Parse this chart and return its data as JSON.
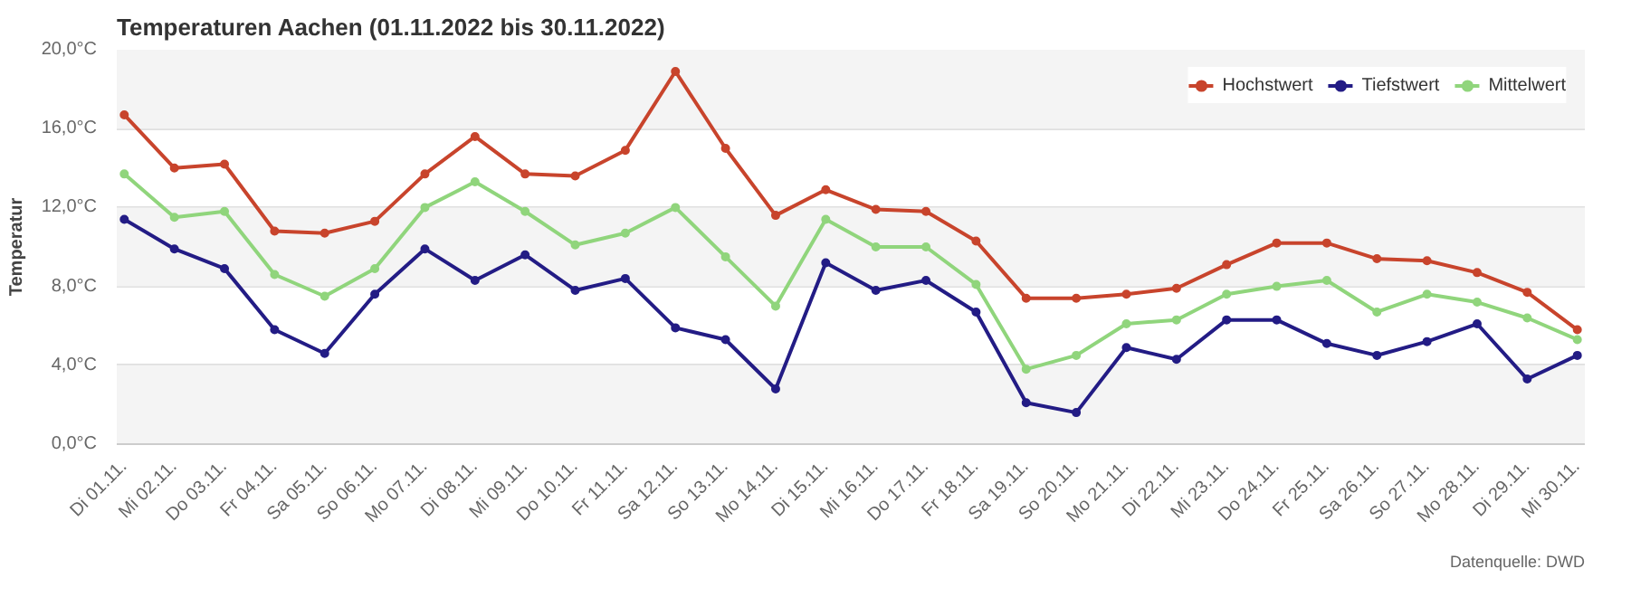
{
  "chart_data": {
    "type": "line",
    "title": "Temperaturen Aachen (01.11.2022 bis 30.11.2022)",
    "ylabel": "Temperatur",
    "categories": [
      "Di 01.11.",
      "Mi 02.11.",
      "Do 03.11.",
      "Fr 04.11.",
      "Sa 05.11.",
      "So 06.11.",
      "Mo 07.11.",
      "Di 08.11.",
      "Mi 09.11.",
      "Do 10.11.",
      "Fr 11.11.",
      "Sa 12.11.",
      "So 13.11.",
      "Mo 14.11.",
      "Di 15.11.",
      "Mi 16.11.",
      "Do 17.11.",
      "Fr 18.11.",
      "Sa 19.11.",
      "So 20.11.",
      "Mo 21.11.",
      "Di 22.11.",
      "Mi 23.11.",
      "Do 24.11.",
      "Fr 25.11.",
      "Sa 26.11.",
      "So 27.11.",
      "Mo 28.11.",
      "Di 29.11.",
      "Mi 30.11."
    ],
    "series": [
      {
        "name": "Hochstwert",
        "color": "#c8442c",
        "values": [
          16.7,
          14.0,
          14.2,
          10.8,
          10.7,
          11.3,
          13.7,
          15.6,
          13.7,
          13.6,
          14.9,
          18.9,
          15.0,
          11.6,
          12.9,
          11.9,
          11.8,
          10.3,
          7.4,
          7.4,
          7.6,
          7.9,
          9.1,
          10.2,
          10.2,
          9.4,
          9.3,
          8.7,
          7.7,
          5.8
        ]
      },
      {
        "name": "Tiefstwert",
        "color": "#231c85",
        "values": [
          11.4,
          9.9,
          8.9,
          5.8,
          4.6,
          7.6,
          9.9,
          8.3,
          9.6,
          7.8,
          8.4,
          5.9,
          5.3,
          2.8,
          9.2,
          7.8,
          8.3,
          6.7,
          2.1,
          1.6,
          4.9,
          4.3,
          6.3,
          6.3,
          5.1,
          4.5,
          5.2,
          6.1,
          3.3,
          4.5
        ]
      },
      {
        "name": "Mittelwert",
        "color": "#90d57c",
        "values": [
          13.7,
          11.5,
          11.8,
          8.6,
          7.5,
          8.9,
          12.0,
          13.3,
          11.8,
          10.1,
          10.7,
          12.0,
          9.5,
          7.0,
          11.4,
          10.0,
          10.0,
          8.1,
          3.8,
          4.5,
          6.1,
          6.3,
          7.6,
          8.0,
          8.3,
          6.7,
          7.6,
          7.2,
          6.4,
          5.3
        ]
      }
    ],
    "ylim": [
      0,
      20
    ],
    "yticks": [
      {
        "value": 0,
        "label": "0,0°C"
      },
      {
        "value": 4,
        "label": "4,0°C"
      },
      {
        "value": 8,
        "label": "8,0°C"
      },
      {
        "value": 12,
        "label": "12,0°C"
      },
      {
        "value": 16,
        "label": "16,0°C"
      },
      {
        "value": 20,
        "label": "20,0°C"
      }
    ],
    "bands": [
      {
        "axis": "y",
        "from": 0,
        "to": 4,
        "color": "#f4f4f4"
      },
      {
        "axis": "y",
        "from": 8,
        "to": 12,
        "color": "#f4f4f4"
      },
      {
        "axis": "y",
        "from": 16,
        "to": 20,
        "color": "#f4f4f4"
      }
    ],
    "grid": "y",
    "legend": "top right",
    "marker": "circle",
    "line_style": "solid",
    "annotations": [
      "Datenquelle: DWD"
    ]
  }
}
